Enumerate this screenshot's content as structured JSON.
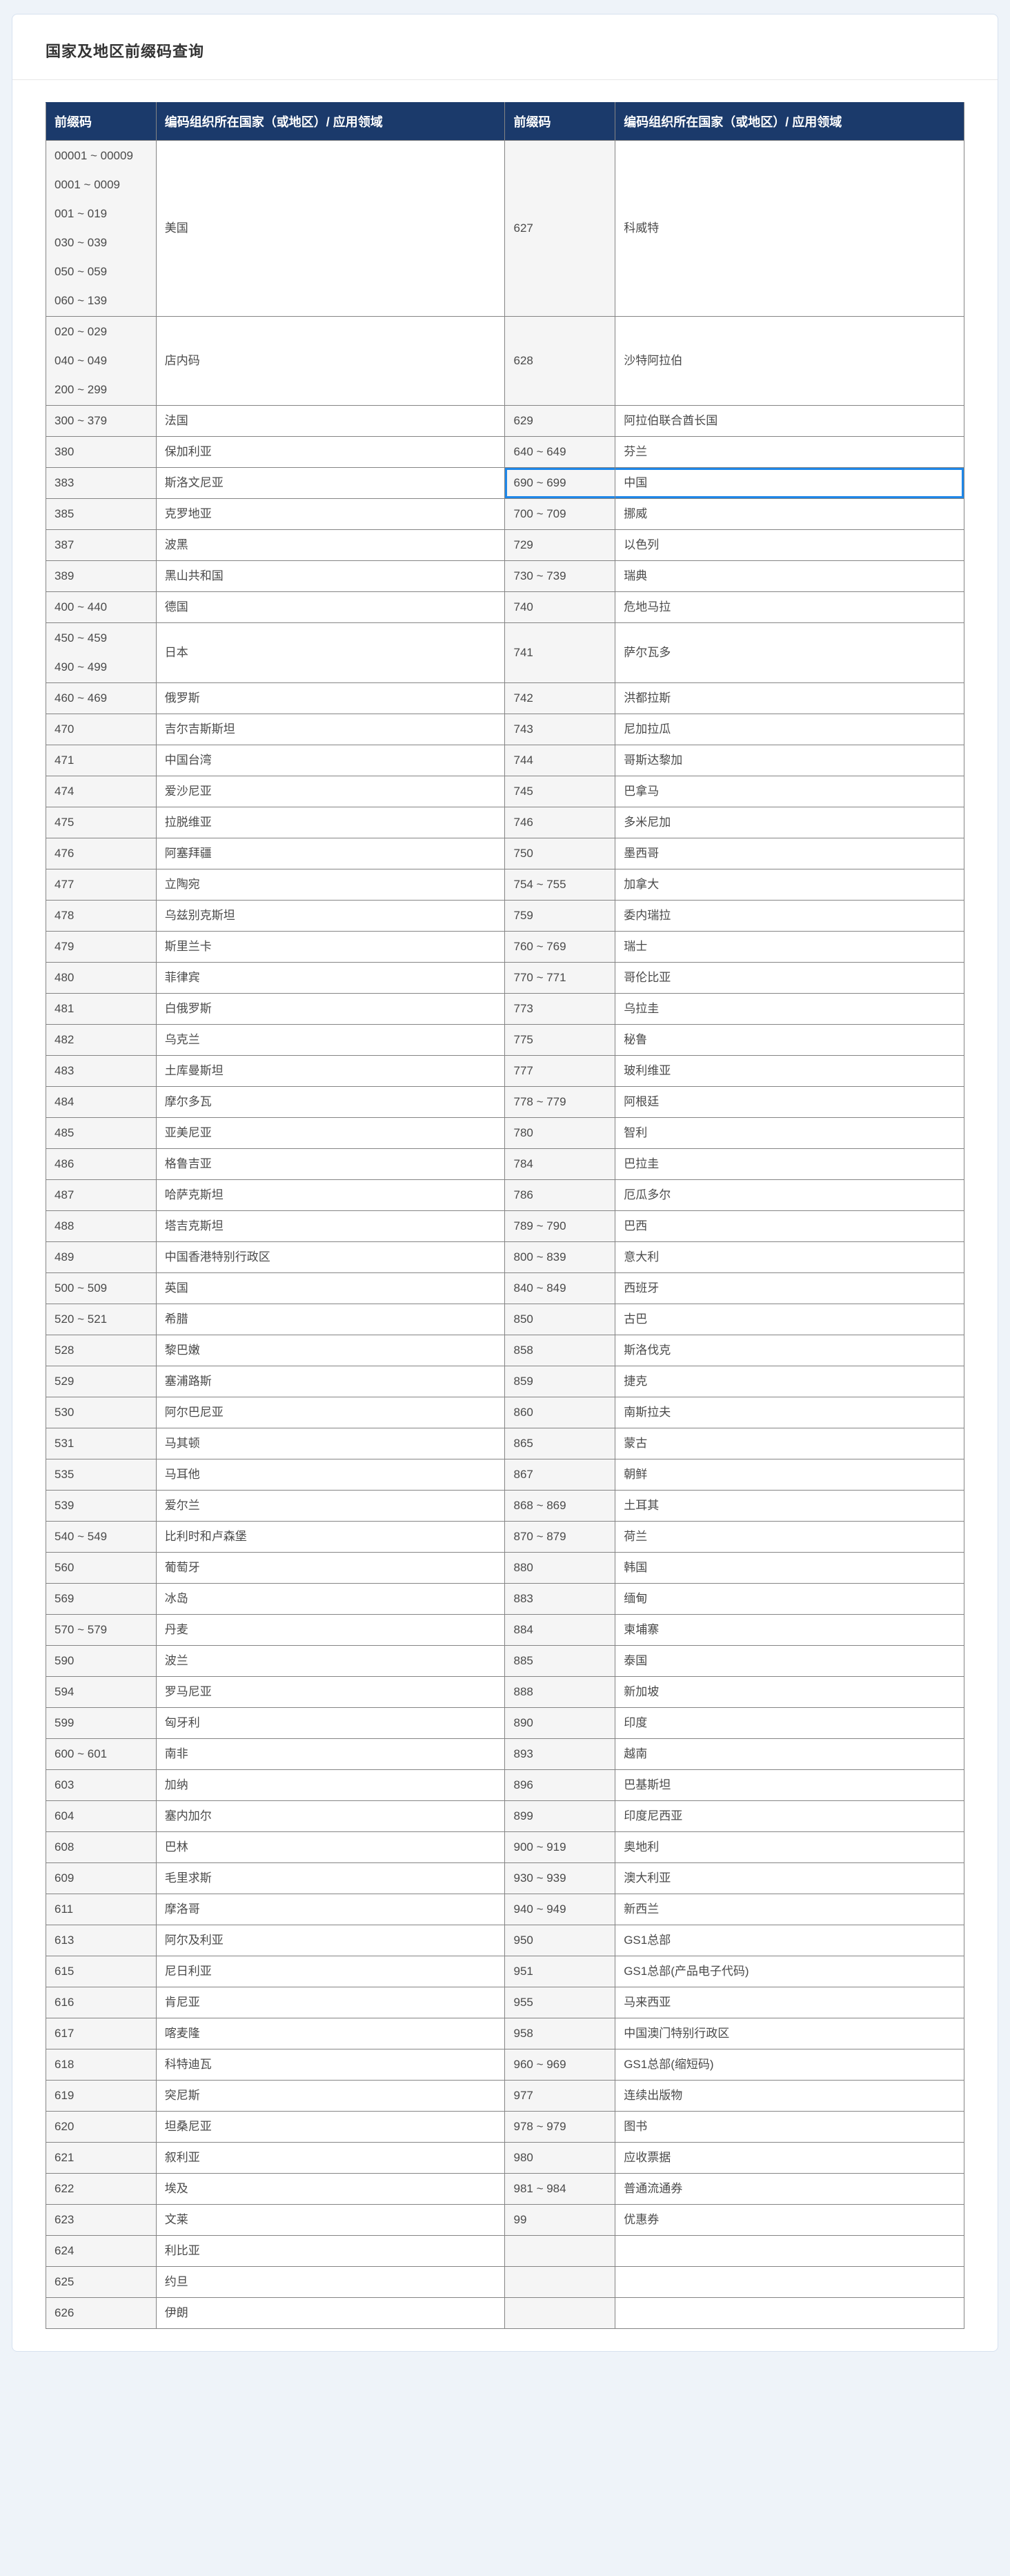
{
  "page_title": "国家及地区前缀码查询",
  "table": {
    "headers": [
      "前缀码",
      "编码组织所在国家（或地区）/ 应用领域",
      "前缀码",
      "编码组织所在国家（或地区）/ 应用领域"
    ],
    "highlight": {
      "row_index": 4,
      "side": "right",
      "color": "#1f87e8"
    },
    "rows": [
      {
        "left_prefix": "00001 ~ 00009\n0001 ~ 0009\n001 ~ 019\n030 ~ 039\n050 ~ 059\n060 ~ 139",
        "left_area": "美国",
        "right_prefix": "627",
        "right_area": "科威特"
      },
      {
        "left_prefix": "020 ~ 029\n040 ~ 049\n200 ~ 299",
        "left_area": "店内码",
        "right_prefix": "628",
        "right_area": "沙特阿拉伯"
      },
      {
        "left_prefix": "300 ~ 379",
        "left_area": "法国",
        "right_prefix": "629",
        "right_area": "阿拉伯联合酋长国"
      },
      {
        "left_prefix": "380",
        "left_area": "保加利亚",
        "right_prefix": "640 ~ 649",
        "right_area": "芬兰"
      },
      {
        "left_prefix": "383",
        "left_area": "斯洛文尼亚",
        "right_prefix": "690 ~ 699",
        "right_area": "中国"
      },
      {
        "left_prefix": "385",
        "left_area": "克罗地亚",
        "right_prefix": "700 ~ 709",
        "right_area": "挪威"
      },
      {
        "left_prefix": "387",
        "left_area": "波黑",
        "right_prefix": "729",
        "right_area": "以色列"
      },
      {
        "left_prefix": "389",
        "left_area": "黑山共和国",
        "right_prefix": "730 ~ 739",
        "right_area": "瑞典"
      },
      {
        "left_prefix": "400 ~ 440",
        "left_area": "德国",
        "right_prefix": "740",
        "right_area": "危地马拉"
      },
      {
        "left_prefix": "450 ~ 459\n490 ~ 499",
        "left_area": "日本",
        "right_prefix": "741",
        "right_area": "萨尔瓦多"
      },
      {
        "left_prefix": "460 ~ 469",
        "left_area": "俄罗斯",
        "right_prefix": "742",
        "right_area": "洪都拉斯"
      },
      {
        "left_prefix": "470",
        "left_area": "吉尔吉斯斯坦",
        "right_prefix": "743",
        "right_area": "尼加拉瓜"
      },
      {
        "left_prefix": "471",
        "left_area": "中国台湾",
        "right_prefix": "744",
        "right_area": "哥斯达黎加"
      },
      {
        "left_prefix": "474",
        "left_area": "爱沙尼亚",
        "right_prefix": "745",
        "right_area": "巴拿马"
      },
      {
        "left_prefix": "475",
        "left_area": "拉脱维亚",
        "right_prefix": "746",
        "right_area": "多米尼加"
      },
      {
        "left_prefix": "476",
        "left_area": "阿塞拜疆",
        "right_prefix": "750",
        "right_area": "墨西哥"
      },
      {
        "left_prefix": "477",
        "left_area": "立陶宛",
        "right_prefix": "754 ~ 755",
        "right_area": "加拿大"
      },
      {
        "left_prefix": "478",
        "left_area": "乌兹别克斯坦",
        "right_prefix": "759",
        "right_area": "委内瑞拉"
      },
      {
        "left_prefix": "479",
        "left_area": "斯里兰卡",
        "right_prefix": "760 ~ 769",
        "right_area": "瑞士"
      },
      {
        "left_prefix": "480",
        "left_area": "菲律宾",
        "right_prefix": "770 ~ 771",
        "right_area": "哥伦比亚"
      },
      {
        "left_prefix": "481",
        "left_area": "白俄罗斯",
        "right_prefix": "773",
        "right_area": "乌拉圭"
      },
      {
        "left_prefix": "482",
        "left_area": "乌克兰",
        "right_prefix": "775",
        "right_area": "秘鲁"
      },
      {
        "left_prefix": "483",
        "left_area": "土库曼斯坦",
        "right_prefix": "777",
        "right_area": "玻利维亚"
      },
      {
        "left_prefix": "484",
        "left_area": "摩尔多瓦",
        "right_prefix": "778 ~ 779",
        "right_area": "阿根廷"
      },
      {
        "left_prefix": "485",
        "left_area": "亚美尼亚",
        "right_prefix": "780",
        "right_area": "智利"
      },
      {
        "left_prefix": "486",
        "left_area": "格鲁吉亚",
        "right_prefix": "784",
        "right_area": "巴拉圭"
      },
      {
        "left_prefix": "487",
        "left_area": "哈萨克斯坦",
        "right_prefix": "786",
        "right_area": "厄瓜多尔"
      },
      {
        "left_prefix": "488",
        "left_area": "塔吉克斯坦",
        "right_prefix": "789 ~ 790",
        "right_area": "巴西"
      },
      {
        "left_prefix": "489",
        "left_area": "中国香港特别行政区",
        "right_prefix": "800 ~ 839",
        "right_area": "意大利"
      },
      {
        "left_prefix": "500 ~ 509",
        "left_area": "英国",
        "right_prefix": "840 ~ 849",
        "right_area": "西班牙"
      },
      {
        "left_prefix": "520 ~ 521",
        "left_area": "希腊",
        "right_prefix": "850",
        "right_area": "古巴"
      },
      {
        "left_prefix": "528",
        "left_area": "黎巴嫩",
        "right_prefix": "858",
        "right_area": "斯洛伐克"
      },
      {
        "left_prefix": "529",
        "left_area": "塞浦路斯",
        "right_prefix": "859",
        "right_area": "捷克"
      },
      {
        "left_prefix": "530",
        "left_area": "阿尔巴尼亚",
        "right_prefix": "860",
        "right_area": "南斯拉夫"
      },
      {
        "left_prefix": "531",
        "left_area": "马其顿",
        "right_prefix": "865",
        "right_area": "蒙古"
      },
      {
        "left_prefix": "535",
        "left_area": "马耳他",
        "right_prefix": "867",
        "right_area": "朝鲜"
      },
      {
        "left_prefix": "539",
        "left_area": "爱尔兰",
        "right_prefix": "868 ~ 869",
        "right_area": "土耳其"
      },
      {
        "left_prefix": "540 ~ 549",
        "left_area": "比利时和卢森堡",
        "right_prefix": "870 ~ 879",
        "right_area": "荷兰"
      },
      {
        "left_prefix": "560",
        "left_area": "葡萄牙",
        "right_prefix": "880",
        "right_area": "韩国"
      },
      {
        "left_prefix": "569",
        "left_area": "冰岛",
        "right_prefix": "883",
        "right_area": "缅甸"
      },
      {
        "left_prefix": "570 ~ 579",
        "left_area": "丹麦",
        "right_prefix": "884",
        "right_area": "柬埔寨"
      },
      {
        "left_prefix": "590",
        "left_area": "波兰",
        "right_prefix": "885",
        "right_area": "泰国"
      },
      {
        "left_prefix": "594",
        "left_area": "罗马尼亚",
        "right_prefix": "888",
        "right_area": "新加坡"
      },
      {
        "left_prefix": "599",
        "left_area": "匈牙利",
        "right_prefix": "890",
        "right_area": "印度"
      },
      {
        "left_prefix": "600 ~ 601",
        "left_area": "南非",
        "right_prefix": "893",
        "right_area": "越南"
      },
      {
        "left_prefix": "603",
        "left_area": "加纳",
        "right_prefix": "896",
        "right_area": "巴基斯坦"
      },
      {
        "left_prefix": "604",
        "left_area": "塞内加尔",
        "right_prefix": "899",
        "right_area": "印度尼西亚"
      },
      {
        "left_prefix": "608",
        "left_area": "巴林",
        "right_prefix": "900 ~ 919",
        "right_area": "奥地利"
      },
      {
        "left_prefix": "609",
        "left_area": "毛里求斯",
        "right_prefix": "930 ~ 939",
        "right_area": "澳大利亚"
      },
      {
        "left_prefix": "611",
        "left_area": "摩洛哥",
        "right_prefix": "940 ~ 949",
        "right_area": "新西兰"
      },
      {
        "left_prefix": "613",
        "left_area": "阿尔及利亚",
        "right_prefix": "950",
        "right_area": "GS1总部"
      },
      {
        "left_prefix": "615",
        "left_area": "尼日利亚",
        "right_prefix": "951",
        "right_area": "GS1总部(产品电子代码)"
      },
      {
        "left_prefix": "616",
        "left_area": "肯尼亚",
        "right_prefix": "955",
        "right_area": "马来西亚"
      },
      {
        "left_prefix": "617",
        "left_area": "喀麦隆",
        "right_prefix": "958",
        "right_area": "中国澳门特别行政区"
      },
      {
        "left_prefix": "618",
        "left_area": "科特迪瓦",
        "right_prefix": "960 ~ 969",
        "right_area": "GS1总部(缩短码)"
      },
      {
        "left_prefix": "619",
        "left_area": "突尼斯",
        "right_prefix": "977",
        "right_area": "连续出版物"
      },
      {
        "left_prefix": "620",
        "left_area": "坦桑尼亚",
        "right_prefix": "978 ~ 979",
        "right_area": "图书"
      },
      {
        "left_prefix": "621",
        "left_area": "叙利亚",
        "right_prefix": "980",
        "right_area": "应收票据"
      },
      {
        "left_prefix": "622",
        "left_area": "埃及",
        "right_prefix": "981 ~ 984",
        "right_area": "普通流通券"
      },
      {
        "left_prefix": "623",
        "left_area": "文莱",
        "right_prefix": "99",
        "right_area": "优惠券"
      },
      {
        "left_prefix": "624",
        "left_area": "利比亚",
        "right_prefix": "",
        "right_area": ""
      },
      {
        "left_prefix": "625",
        "left_area": "约旦",
        "right_prefix": "",
        "right_area": ""
      },
      {
        "left_prefix": "626",
        "left_area": "伊朗",
        "right_prefix": "",
        "right_area": ""
      }
    ]
  }
}
